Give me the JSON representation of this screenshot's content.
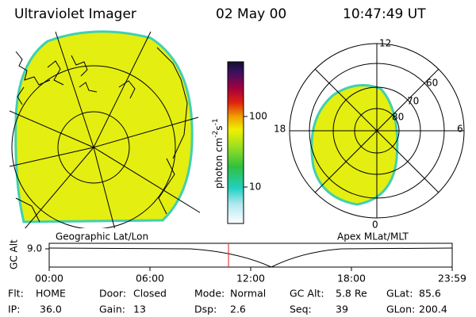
{
  "header": {
    "title": "Ultraviolet Imager",
    "date": "02 May 00",
    "time": "10:47:49 UT"
  },
  "colorbar": {
    "label": "photon cm",
    "exp1": "-2",
    "unit2": "s",
    "exp2": "-1",
    "ticks": [
      "100",
      "10"
    ]
  },
  "polar": {
    "mlt_labels": [
      "12",
      "18",
      "6",
      "0"
    ],
    "lat_labels": [
      "60",
      "70",
      "80"
    ]
  },
  "map_labels": {
    "left": "Geographic Lat/Lon",
    "right": "Apex MLat/MLT"
  },
  "altitude_plot": {
    "y_label": "GC Alt",
    "y_tick": "9.0",
    "x_ticks": [
      "00:00",
      "06:00",
      "12:00",
      "18:00",
      "23:59"
    ]
  },
  "info": [
    [
      {
        "label": "Flt:",
        "value": "HOME"
      },
      {
        "label": "Door:",
        "value": "Closed"
      },
      {
        "label": "Mode:",
        "value": "Normal"
      },
      {
        "label": "GC Alt:",
        "value": "5.8 Re"
      },
      {
        "label": "GLat:",
        "value": "85.6"
      }
    ],
    [
      {
        "label": "IP:",
        "value": "36.0"
      },
      {
        "label": "Gain:",
        "value": "13"
      },
      {
        "label": "Dsp:",
        "value": "2.6"
      },
      {
        "label": "Seq:",
        "value": "39"
      },
      {
        "label": "GLon:",
        "value": "200.4"
      }
    ]
  ]
}
